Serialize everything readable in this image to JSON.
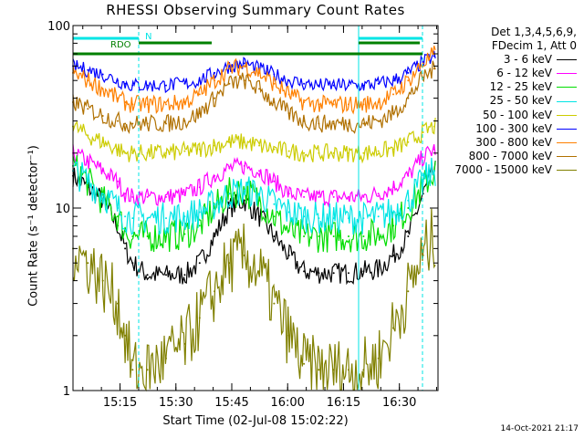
{
  "page": {
    "footer_timestamp": "14-Oct-2021 21:17"
  },
  "chart_data": {
    "type": "line",
    "title": "RHESSI Observing Summary Count Rates",
    "xlabel": "Start Time (02-Jul-08 15:02:22)",
    "ylabel": "Count Rate (s⁻¹ detector⁻¹)",
    "yscale": "log",
    "ylim": [
      1,
      100
    ],
    "xlim_minutes": [
      0,
      98
    ],
    "x_ticks": [
      "15:15",
      "15:30",
      "15:45",
      "16:00",
      "16:15",
      "16:30"
    ],
    "x_tick_minutes": [
      12.63,
      27.63,
      42.63,
      57.63,
      72.63,
      87.63
    ],
    "y_ticks": [
      1,
      10,
      100
    ],
    "grid": false,
    "legend_position": "outside-right",
    "legend_header": [
      "Det 1,3,4,5,6,9,",
      "FDecim 1, Att 0"
    ],
    "series": [
      {
        "name": "3 - 6 keV",
        "color": "#000000",
        "x": [
          0,
          4,
          8,
          12,
          14,
          16,
          20,
          25,
          30,
          34,
          38,
          42,
          46,
          50,
          54,
          58,
          62,
          66,
          70,
          74,
          78,
          82,
          86,
          90,
          94,
          97
        ],
        "y": [
          15,
          13,
          11,
          8,
          6,
          5,
          4.3,
          4.3,
          4.3,
          5,
          7,
          10,
          11,
          9,
          7,
          5.5,
          4.5,
          4.4,
          4.4,
          4.4,
          4.5,
          4.6,
          5.5,
          7,
          12,
          16
        ]
      },
      {
        "name": "6 - 12 keV",
        "color": "#ff00ff",
        "x": [
          0,
          4,
          8,
          12,
          14,
          16,
          20,
          25,
          30,
          34,
          38,
          42,
          46,
          50,
          54,
          58,
          62,
          66,
          70,
          74,
          78,
          82,
          86,
          90,
          94,
          97
        ],
        "y": [
          20,
          18,
          16,
          14,
          12,
          11.5,
          11.5,
          11.5,
          11.8,
          13,
          15,
          16.5,
          17,
          16,
          14,
          12,
          11.5,
          11.5,
          11.5,
          11.5,
          11.5,
          12,
          13,
          15,
          19,
          21
        ]
      },
      {
        "name": "12 - 25 keV",
        "color": "#00dd00",
        "x": [
          0,
          4,
          8,
          12,
          14,
          16,
          20,
          25,
          30,
          34,
          38,
          42,
          46,
          50,
          54,
          58,
          62,
          66,
          70,
          74,
          78,
          82,
          86,
          90,
          94,
          97
        ],
        "y": [
          17,
          14,
          11,
          9,
          7.5,
          7,
          7,
          7,
          7.2,
          8,
          10,
          12,
          12.5,
          11,
          9,
          7.5,
          7,
          7,
          7,
          7,
          7,
          7.2,
          8,
          10,
          13,
          16
        ]
      },
      {
        "name": "25 - 50 keV",
        "color": "#00e5e5",
        "x": [
          0,
          4,
          8,
          12,
          14,
          16,
          20,
          25,
          30,
          34,
          38,
          42,
          46,
          50,
          54,
          58,
          62,
          66,
          70,
          74,
          78,
          82,
          86,
          90,
          94,
          97
        ],
        "y": [
          16,
          14,
          12,
          10,
          9,
          8.8,
          8.8,
          8.8,
          9,
          9.5,
          10.5,
          12,
          12.5,
          12,
          10.5,
          9.5,
          9,
          8.8,
          8.8,
          8.8,
          8.8,
          9,
          9.5,
          11,
          14,
          16
        ]
      },
      {
        "name": "50 - 100 keV",
        "color": "#cccc00",
        "x": [
          0,
          4,
          8,
          12,
          14,
          16,
          20,
          25,
          30,
          34,
          38,
          42,
          46,
          50,
          54,
          58,
          62,
          66,
          70,
          74,
          78,
          82,
          86,
          90,
          94,
          97
        ],
        "y": [
          28,
          25,
          23,
          21,
          20,
          20,
          20,
          20,
          20.5,
          21,
          22,
          23,
          23,
          22,
          21,
          20.5,
          20,
          20,
          20,
          20,
          20,
          20.5,
          21,
          23,
          26,
          28
        ]
      },
      {
        "name": "100 - 300 keV",
        "color": "#0000ff",
        "x": [
          0,
          4,
          8,
          12,
          14,
          16,
          20,
          25,
          30,
          34,
          38,
          42,
          46,
          50,
          54,
          58,
          62,
          66,
          70,
          74,
          78,
          82,
          86,
          90,
          94,
          97
        ],
        "y": [
          60,
          57,
          54,
          50,
          48,
          47,
          47,
          47,
          48,
          50,
          55,
          60,
          62,
          58,
          54,
          50,
          48,
          47,
          47,
          47,
          47,
          48,
          50,
          55,
          63,
          68
        ]
      },
      {
        "name": "300 - 800 keV",
        "color": "#ff8000",
        "x": [
          0,
          4,
          8,
          12,
          14,
          16,
          20,
          25,
          30,
          34,
          38,
          42,
          46,
          50,
          54,
          58,
          62,
          66,
          70,
          74,
          78,
          82,
          86,
          90,
          94,
          97
        ],
        "y": [
          55,
          50,
          45,
          40,
          38,
          37,
          37,
          37,
          38,
          42,
          50,
          58,
          60,
          55,
          48,
          42,
          38,
          37,
          37,
          37,
          37,
          38,
          42,
          50,
          62,
          70
        ]
      },
      {
        "name": "800 - 7000 keV",
        "color": "#b07000",
        "x": [
          0,
          4,
          8,
          12,
          14,
          16,
          20,
          25,
          30,
          34,
          38,
          42,
          46,
          50,
          54,
          58,
          62,
          66,
          70,
          74,
          78,
          82,
          86,
          90,
          94,
          97
        ],
        "y": [
          38,
          35,
          32,
          30,
          29,
          29,
          29,
          29,
          30,
          33,
          40,
          48,
          50,
          45,
          38,
          33,
          30,
          29,
          29,
          29,
          29,
          30,
          33,
          40,
          52,
          58
        ]
      },
      {
        "name": "7000 - 15000 keV",
        "color": "#808000",
        "x": [
          0,
          4,
          8,
          12,
          14,
          16,
          20,
          25,
          30,
          34,
          38,
          42,
          46,
          50,
          54,
          58,
          62,
          66,
          70,
          74,
          78,
          82,
          86,
          90,
          94,
          97
        ],
        "y": [
          6,
          5,
          4,
          3,
          2,
          1.3,
          1.3,
          1.5,
          1.8,
          2.5,
          3.5,
          5,
          5.5,
          4.5,
          3,
          2,
          1.4,
          1.3,
          1.3,
          1.3,
          1.3,
          1.5,
          2.2,
          3.5,
          5.5,
          7
        ]
      }
    ],
    "annotations": [
      {
        "label": "RDO",
        "color": "#008000"
      },
      {
        "label": "N",
        "color": "#00e5e5"
      }
    ]
  }
}
